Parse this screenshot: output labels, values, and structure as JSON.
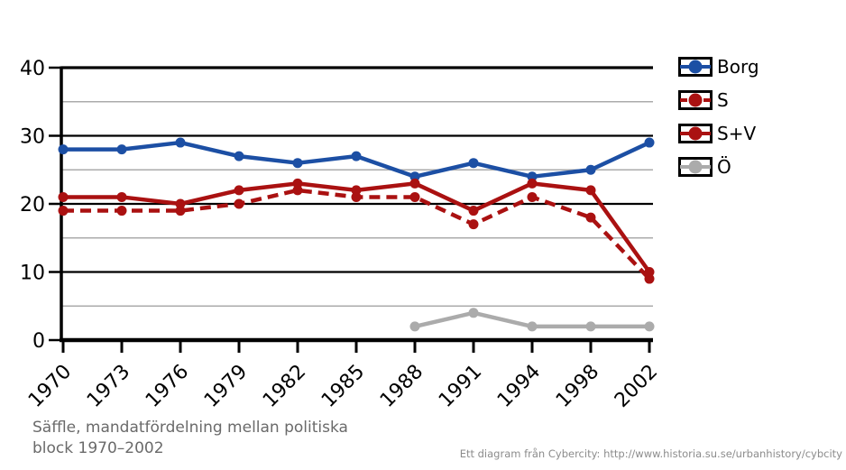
{
  "figure": {
    "caption_line1": "Säffle, mandatfördelning mellan politiska",
    "caption_line2": "block 1970–2002",
    "attribution": "Ett diagram från Cybercity: http://www.historia.su.se/urbanhistory/cybcity"
  },
  "chart_data": {
    "type": "line",
    "title": "Säffle, mandatfördelning mellan politiska block 1970–2002",
    "xlabel": "",
    "ylabel": "",
    "categories": [
      "1970",
      "1973",
      "1976",
      "1979",
      "1982",
      "1985",
      "1988",
      "1991",
      "1994",
      "1998",
      "2002"
    ],
    "series": [
      {
        "name": "Borg",
        "color": "#1C4FA4",
        "line_style": "solid",
        "values": [
          28,
          28,
          29,
          27,
          26,
          27,
          24,
          26,
          24,
          25,
          29
        ]
      },
      {
        "name": "S",
        "color": "#AA1111",
        "line_style": "dashed",
        "values": [
          19,
          19,
          19,
          20,
          22,
          21,
          21,
          17,
          21,
          18,
          9
        ]
      },
      {
        "name": "S+V",
        "color": "#AA1111",
        "line_style": "solid",
        "values": [
          21,
          21,
          20,
          22,
          23,
          22,
          23,
          19,
          23,
          22,
          10
        ]
      },
      {
        "name": "Ö",
        "color": "#ABABAB",
        "line_style": "solid",
        "values": [
          null,
          null,
          null,
          null,
          null,
          null,
          2,
          4,
          2,
          2,
          2
        ]
      }
    ],
    "ylim": [
      0,
      40
    ],
    "yticks": [
      0,
      10,
      20,
      30,
      40
    ],
    "minor_yticks": [
      5,
      15,
      25,
      35
    ],
    "grid": true,
    "legend_position": "right"
  },
  "colors": {
    "borg_blue": "#1C4FA4",
    "s_red": "#AA1111",
    "other_gray": "#ABABAB",
    "axis_black": "#000000",
    "minor_grid_gray": "#ABABAB",
    "caption_gray": "#6A6A6A",
    "attribution_gray": "#8C8C8C"
  }
}
